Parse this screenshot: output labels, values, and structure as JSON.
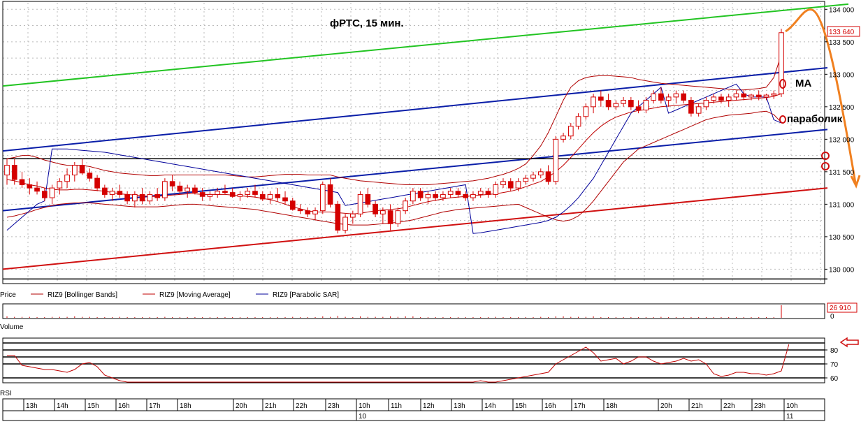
{
  "title": "фРТС,  15  мин.",
  "annotations": {
    "ma": "MA",
    "parabolic": "параболик"
  },
  "price_axis": {
    "ticks": [
      "134 000",
      "133 500",
      "133 000",
      "132 500",
      "132 000",
      "131 500",
      "131 000",
      "130 500",
      "130 000"
    ],
    "last_price": "133 640"
  },
  "legend": {
    "price": "Price",
    "bb": "RIZ9 [Bollinger Bands]",
    "ma": "RIZ9 [Moving Average]",
    "psar": "RIZ9 [Parabolic SAR]"
  },
  "volume_panel": {
    "label": "Volume",
    "last_value": "26 910",
    "zero": "0"
  },
  "rsi_panel": {
    "label": "RSI",
    "ticks": [
      "80",
      "70",
      "60"
    ]
  },
  "time_axis": {
    "hours": [
      "13h",
      "14h",
      "15h",
      "16h",
      "17h",
      "18h",
      "20h",
      "21h",
      "22h",
      "23h",
      "10h",
      "11h",
      "12h",
      "13h",
      "14h",
      "15h",
      "16h",
      "17h",
      "18h",
      "20h",
      "21h",
      "22h",
      "23h",
      "10h"
    ],
    "dates": [
      "10",
      "11"
    ]
  },
  "colors": {
    "bull": "#ffffff",
    "bear": "#d40000",
    "bb": "#b00000",
    "ma": "#c00000",
    "psar": "#00009a",
    "channel_upper": "#22c422",
    "channel": "#0a1ea8",
    "support": "#d01010",
    "annotation": "#f08020"
  },
  "chart_data": {
    "type": "candlestick",
    "title": "фРТС,  15  мин.",
    "ylim": [
      129800,
      134100
    ],
    "close_last": 133640,
    "ohlc": [
      [
        131450,
        131700,
        131300,
        131600
      ],
      [
        131600,
        131700,
        131300,
        131380
      ],
      [
        131380,
        131500,
        131250,
        131300
      ],
      [
        131300,
        131400,
        131150,
        131250
      ],
      [
        131250,
        131350,
        131150,
        131200
      ],
      [
        131200,
        131250,
        131050,
        131100
      ],
      [
        131100,
        131300,
        131000,
        131250
      ],
      [
        131250,
        131400,
        131150,
        131350
      ],
      [
        131350,
        131550,
        131250,
        131450
      ],
      [
        131450,
        131650,
        131350,
        131600
      ],
      [
        131600,
        131700,
        131450,
        131480
      ],
      [
        131480,
        131550,
        131350,
        131400
      ],
      [
        131400,
        131450,
        131200,
        131250
      ],
      [
        131250,
        131300,
        131100,
        131150
      ],
      [
        131150,
        131250,
        131050,
        131200
      ],
      [
        131200,
        131300,
        131100,
        131150
      ],
      [
        131150,
        131200,
        131000,
        131050
      ],
      [
        131050,
        131200,
        130950,
        131150
      ],
      [
        131150,
        131250,
        131000,
        131050
      ],
      [
        131050,
        131200,
        131000,
        131150
      ],
      [
        131150,
        131250,
        131050,
        131100
      ],
      [
        131100,
        131400,
        131050,
        131350
      ],
      [
        131350,
        131450,
        131200,
        131280
      ],
      [
        131280,
        131350,
        131150,
        131200
      ],
      [
        131200,
        131300,
        131100,
        131250
      ],
      [
        131250,
        131300,
        131150,
        131180
      ],
      [
        131180,
        131250,
        131050,
        131120
      ],
      [
        131120,
        131200,
        131050,
        131150
      ],
      [
        131150,
        131250,
        131100,
        131200
      ],
      [
        131200,
        131300,
        131150,
        131180
      ],
      [
        131180,
        131250,
        131100,
        131120
      ],
      [
        131120,
        131200,
        131050,
        131150
      ],
      [
        131150,
        131250,
        131100,
        131200
      ],
      [
        131200,
        131300,
        131100,
        131150
      ],
      [
        131150,
        131200,
        131050,
        131080
      ],
      [
        131080,
        131200,
        131000,
        131150
      ],
      [
        131150,
        131250,
        131050,
        131100
      ],
      [
        131100,
        131200,
        131000,
        131050
      ],
      [
        131050,
        131100,
        130900,
        130920
      ],
      [
        130920,
        131000,
        130850,
        130900
      ],
      [
        130900,
        130950,
        130800,
        130850
      ],
      [
        130850,
        130950,
        130750,
        130900
      ],
      [
        130900,
        131350,
        130850,
        131300
      ],
      [
        131300,
        131400,
        130950,
        131000
      ],
      [
        131000,
        131050,
        130550,
        130600
      ],
      [
        130600,
        130850,
        130550,
        130800
      ],
      [
        130800,
        130900,
        130700,
        130850
      ],
      [
        130850,
        131200,
        130800,
        131150
      ],
      [
        131150,
        131250,
        130950,
        131000
      ],
      [
        131000,
        131050,
        130800,
        130850
      ],
      [
        130850,
        130950,
        130700,
        130900
      ],
      [
        130900,
        131000,
        130600,
        130700
      ],
      [
        130700,
        130950,
        130650,
        130900
      ],
      [
        130900,
        131100,
        130850,
        131050
      ],
      [
        131050,
        131250,
        131000,
        131200
      ],
      [
        131200,
        131250,
        131050,
        131100
      ],
      [
        131100,
        131200,
        131000,
        131150
      ],
      [
        131150,
        131200,
        131050,
        131100
      ],
      [
        131100,
        131200,
        131050,
        131150
      ],
      [
        131150,
        131250,
        131100,
        131200
      ],
      [
        131200,
        131250,
        131100,
        131150
      ],
      [
        131150,
        131200,
        131050,
        131100
      ],
      [
        131100,
        131200,
        131050,
        131150
      ],
      [
        131150,
        131250,
        131100,
        131200
      ],
      [
        131200,
        131250,
        131100,
        131150
      ],
      [
        131150,
        131350,
        131100,
        131300
      ],
      [
        131300,
        131400,
        131250,
        131350
      ],
      [
        131350,
        131400,
        131200,
        131250
      ],
      [
        131250,
        131400,
        131200,
        131350
      ],
      [
        131350,
        131450,
        131300,
        131400
      ],
      [
        131400,
        131500,
        131350,
        131450
      ],
      [
        131450,
        131550,
        131400,
        131500
      ],
      [
        131500,
        131600,
        131300,
        131350
      ],
      [
        131350,
        132050,
        131300,
        132000
      ],
      [
        132000,
        132100,
        131950,
        132050
      ],
      [
        132050,
        132250,
        132000,
        132200
      ],
      [
        132200,
        132400,
        132150,
        132350
      ],
      [
        132350,
        132550,
        132300,
        132500
      ],
      [
        132500,
        132700,
        132400,
        132650
      ],
      [
        132650,
        132750,
        132500,
        132600
      ],
      [
        132600,
        132700,
        132450,
        132500
      ],
      [
        132500,
        132600,
        132450,
        132550
      ],
      [
        132550,
        132650,
        132500,
        132600
      ],
      [
        132600,
        132650,
        132450,
        132500
      ],
      [
        132500,
        132600,
        132400,
        132450
      ],
      [
        132450,
        132650,
        132400,
        132600
      ],
      [
        132600,
        132750,
        132550,
        132700
      ],
      [
        132700,
        132800,
        132550,
        132600
      ],
      [
        132600,
        132700,
        132500,
        132650
      ],
      [
        132650,
        132750,
        132550,
        132700
      ],
      [
        132700,
        132750,
        132550,
        132600
      ],
      [
        132600,
        132650,
        132350,
        132400
      ],
      [
        132400,
        132550,
        132350,
        132500
      ],
      [
        132500,
        132650,
        132450,
        132600
      ],
      [
        132600,
        132700,
        132550,
        132650
      ],
      [
        132650,
        132700,
        132550,
        132600
      ],
      [
        132600,
        132700,
        132500,
        132650
      ],
      [
        132650,
        132750,
        132600,
        132700
      ],
      [
        132700,
        132750,
        132600,
        132650
      ],
      [
        132650,
        132700,
        132600,
        132680
      ],
      [
        132680,
        132750,
        132600,
        132650
      ],
      [
        132650,
        132700,
        132600,
        132680
      ],
      [
        132680,
        132750,
        132620,
        132700
      ],
      [
        132700,
        133700,
        132650,
        133640
      ]
    ],
    "ma": [
      131380,
      131360,
      131330,
      131300,
      131280,
      131250,
      131230,
      131220,
      131220,
      131230,
      131230,
      131220,
      131210,
      131200,
      131180,
      131160,
      131150,
      131140,
      131130,
      131120,
      131120,
      131130,
      131140,
      131150,
      131160,
      131160,
      131150,
      131150,
      131150,
      131150,
      131140,
      131130,
      131120,
      131110,
      131090,
      131070,
      131040,
      131000,
      130960,
      130930,
      130900,
      130880,
      130880,
      130880,
      130870,
      130860,
      130850,
      130860,
      130880,
      130900,
      130910,
      130920,
      130930,
      130950,
      130980,
      131010,
      131040,
      131060,
      131080,
      131100,
      131110,
      131120,
      131130,
      131140,
      131150,
      131160,
      131180,
      131200,
      131230,
      131270,
      131310,
      131350,
      131420,
      131500,
      131600,
      131720,
      131850,
      131980,
      132100,
      132200,
      132280,
      132340,
      132380,
      132420,
      132440,
      132460,
      132480,
      132500,
      132510,
      132520,
      132530,
      132540,
      132550,
      132560,
      132570,
      132580,
      132590,
      132600,
      132610,
      132620,
      132630,
      132640,
      132660,
      132700
    ],
    "bb_upper": [
      131700,
      131720,
      131750,
      131750,
      131720,
      131680,
      131650,
      131620,
      131600,
      131600,
      131600,
      131580,
      131550,
      131520,
      131500,
      131480,
      131470,
      131460,
      131450,
      131440,
      131440,
      131450,
      131450,
      131450,
      131450,
      131450,
      131450,
      131450,
      131450,
      131450,
      131440,
      131430,
      131420,
      131420,
      131430,
      131440,
      131450,
      131460,
      131460,
      131460,
      131450,
      131450,
      131450,
      131450,
      131420,
      131400,
      131380,
      131360,
      131350,
      131340,
      131330,
      131320,
      131310,
      131300,
      131300,
      131300,
      131300,
      131310,
      131320,
      131330,
      131340,
      131350,
      131360,
      131380,
      131400,
      131430,
      131460,
      131500,
      131550,
      131620,
      131750,
      131900,
      132100,
      132350,
      132600,
      132800,
      132900,
      132950,
      132970,
      132980,
      132980,
      132970,
      132960,
      132950,
      132920,
      132900,
      132880,
      132860,
      132850,
      132840,
      132830,
      132820,
      132810,
      132800,
      132790,
      132780,
      132770,
      132760,
      132760,
      132770,
      132780,
      132800,
      132950,
      133300
    ],
    "bb_lower": [
      130800,
      130820,
      130850,
      130880,
      130920,
      130950,
      130980,
      131000,
      131010,
      131020,
      131020,
      131020,
      131010,
      131000,
      130990,
      130980,
      130970,
      130960,
      130960,
      130960,
      130960,
      130970,
      130980,
      130990,
      131000,
      131000,
      130990,
      130980,
      130970,
      130960,
      130950,
      130940,
      130930,
      130920,
      130900,
      130880,
      130860,
      130840,
      130820,
      130800,
      130780,
      130760,
      130740,
      130720,
      130700,
      130690,
      130680,
      130680,
      130680,
      130690,
      130700,
      130710,
      130720,
      130740,
      130760,
      130790,
      130820,
      130850,
      130880,
      130900,
      130920,
      130930,
      130940,
      130950,
      130960,
      130970,
      130980,
      130990,
      131000,
      130950,
      130900,
      130850,
      130800,
      130760,
      130740,
      130760,
      130820,
      130920,
      131050,
      131200,
      131350,
      131500,
      131650,
      131750,
      131850,
      131900,
      131950,
      132000,
      132050,
      132100,
      132150,
      132200,
      132250,
      132300,
      132330,
      132350,
      132370,
      132380,
      132390,
      132400,
      132420,
      132430,
      132380,
      132260
    ],
    "psar": [
      130600,
      130700,
      130800,
      130900,
      131000,
      131050,
      131850,
      131850,
      131850,
      131840,
      131830,
      131820,
      131810,
      131800,
      131780,
      131760,
      131740,
      131720,
      131700,
      131680,
      131660,
      131640,
      131620,
      131600,
      131580,
      131560,
      131540,
      131520,
      131500,
      131480,
      131460,
      131440,
      131420,
      131400,
      131380,
      131360,
      131340,
      131320,
      131300,
      131280,
      131260,
      131240,
      131220,
      131200,
      131180,
      130980,
      131000,
      131020,
      131040,
      131060,
      131080,
      131100,
      131120,
      131140,
      131160,
      131180,
      131200,
      131220,
      131240,
      131260,
      131280,
      131300,
      130550,
      130560,
      130580,
      130600,
      130620,
      130640,
      130660,
      130680,
      130700,
      130720,
      130750,
      130800,
      130880,
      130980,
      131100,
      131250,
      131400,
      131600,
      131800,
      132000,
      132200,
      132400,
      132500,
      132600,
      132700,
      132800,
      132400,
      132450,
      132500,
      132550,
      132600,
      132650,
      132700,
      132750,
      132800,
      132850,
      132700,
      132650,
      132650,
      132650,
      132300,
      132250
    ],
    "volume": [
      3,
      2,
      2,
      2,
      1,
      1,
      2,
      2,
      2,
      3,
      2,
      2,
      1,
      1,
      1,
      2,
      1,
      1,
      1,
      1,
      1,
      2,
      1,
      1,
      1,
      1,
      1,
      1,
      1,
      1,
      1,
      1,
      1,
      1,
      1,
      1,
      1,
      1,
      2,
      1,
      1,
      1,
      3,
      2,
      4,
      2,
      1,
      3,
      2,
      2,
      2,
      3,
      2,
      3,
      3,
      1,
      1,
      1,
      1,
      1,
      1,
      1,
      1,
      1,
      1,
      2,
      1,
      1,
      1,
      1,
      1,
      2,
      1,
      3,
      3,
      2,
      2,
      2,
      3,
      1,
      1,
      1,
      1,
      1,
      1,
      1,
      1,
      2,
      1,
      1,
      1,
      1,
      1,
      1,
      1,
      1,
      1,
      1,
      1,
      1,
      1,
      1,
      1,
      26
    ],
    "rsi": [
      76,
      76,
      69,
      68,
      67,
      66,
      66,
      65,
      64,
      66,
      70,
      71,
      68,
      62,
      60,
      58,
      57,
      56,
      56,
      55,
      55,
      57,
      57,
      56,
      56,
      55,
      55,
      55,
      55,
      54,
      54,
      54,
      54,
      53,
      53,
      53,
      52,
      52,
      51,
      51,
      51,
      50,
      52,
      51,
      50,
      51,
      51,
      52,
      51,
      51,
      52,
      52,
      53,
      54,
      55,
      56,
      55,
      55,
      54,
      56,
      55,
      56,
      57,
      58,
      56,
      57,
      58,
      59,
      60,
      61,
      62,
      63,
      64,
      70,
      73,
      76,
      79,
      82,
      78,
      72,
      73,
      74,
      70,
      72,
      75,
      75,
      72,
      70,
      71,
      72,
      74,
      72,
      73,
      70,
      63,
      61,
      62,
      64,
      64,
      63,
      63,
      62,
      63,
      65,
      84
    ],
    "lines": [
      {
        "name": "upper",
        "p1": [
          0,
          132820
        ],
        "p2": [
          1210,
          134080
        ]
      },
      {
        "name": "channel-top",
        "p1": [
          0,
          131820
        ],
        "p2": [
          1180,
          133100
        ]
      },
      {
        "name": "channel-bottom",
        "p1": [
          0,
          130900
        ],
        "p2": [
          1180,
          132150
        ]
      },
      {
        "name": "support",
        "p1": [
          0,
          130000
        ],
        "p2": [
          1180,
          131250
        ]
      },
      {
        "name": "h1",
        "p1": [
          0,
          131700
        ],
        "p2": [
          1180,
          131700
        ]
      },
      {
        "name": "h2",
        "p1": [
          0,
          129850
        ],
        "p2": [
          1180,
          129850
        ]
      }
    ]
  }
}
